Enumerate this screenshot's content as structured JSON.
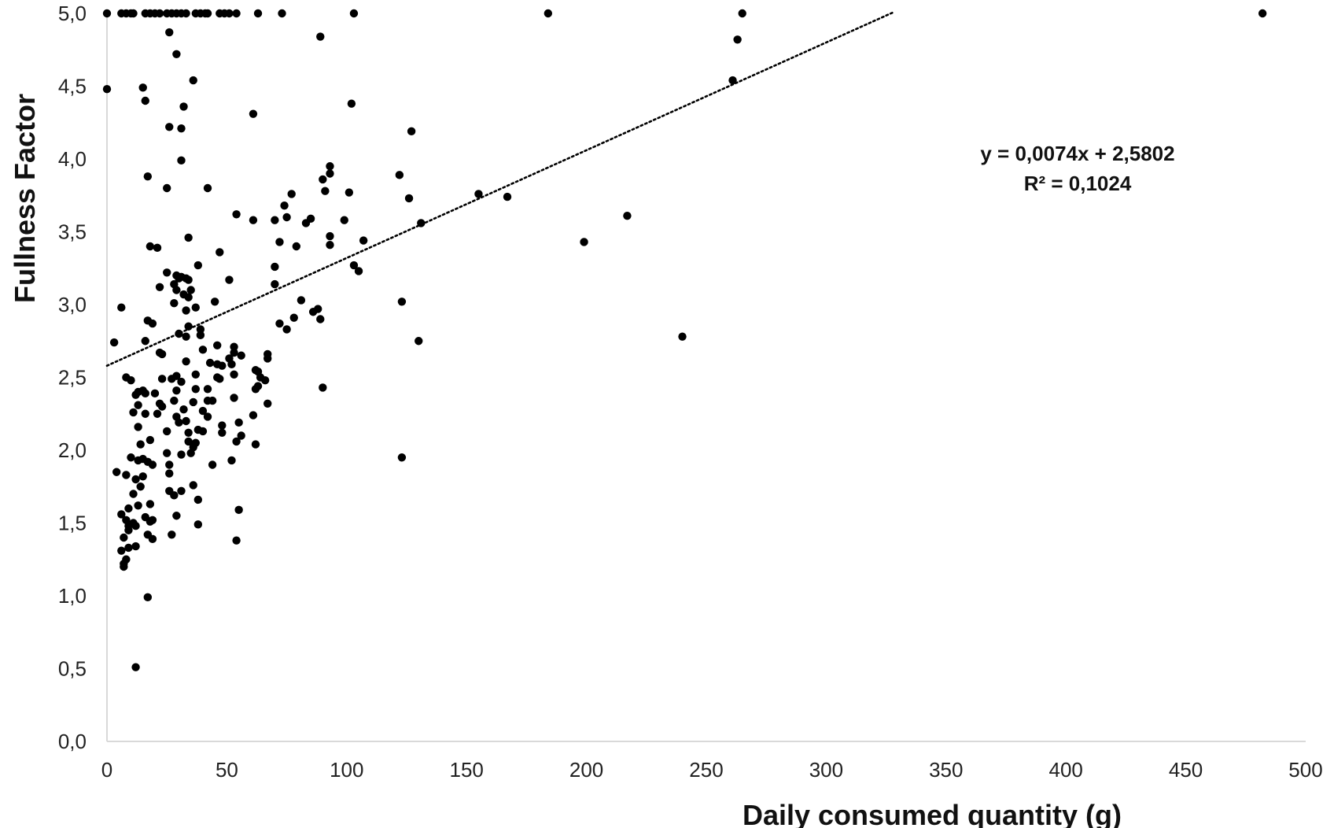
{
  "chart_data": {
    "type": "scatter",
    "title": "",
    "xlabel": "Daily consumed quantity (g)",
    "ylabel": "Fullness Factor",
    "xlim": [
      0,
      500
    ],
    "ylim": [
      0,
      5
    ],
    "x_ticks": [
      "0",
      "50",
      "100",
      "150",
      "200",
      "250",
      "300",
      "350",
      "400",
      "450",
      "500"
    ],
    "y_ticks": [
      "0,0",
      "0,5",
      "1,0",
      "1,5",
      "2,0",
      "2,5",
      "3,0",
      "3,5",
      "4,0",
      "4,5",
      "5,0"
    ],
    "grid": false,
    "legend": "none",
    "colors": {
      "points": "#000000",
      "axis": "#d9d9d9",
      "trendline": "#000000"
    },
    "trendline": {
      "style": "dotted",
      "slope": 0.0074,
      "intercept": 2.5802,
      "x_range": [
        0,
        328
      ],
      "equation": "y = 0,0074x + 2,5802",
      "r_squared": "R² = 0,1024"
    },
    "series": [
      {
        "points": [
          [
            0,
            5
          ],
          [
            6,
            5
          ],
          [
            8,
            5
          ],
          [
            10,
            5
          ],
          [
            11,
            5
          ],
          [
            16,
            5
          ],
          [
            18,
            5
          ],
          [
            20,
            5
          ],
          [
            22,
            5
          ],
          [
            25,
            5
          ],
          [
            27,
            5
          ],
          [
            29,
            5
          ],
          [
            31,
            5
          ],
          [
            33,
            5
          ],
          [
            37,
            5
          ],
          [
            39,
            5
          ],
          [
            41,
            5
          ],
          [
            42,
            5
          ],
          [
            47,
            5
          ],
          [
            49,
            5
          ],
          [
            51,
            5
          ],
          [
            54,
            5
          ],
          [
            63,
            5
          ],
          [
            73,
            5
          ],
          [
            103,
            5
          ],
          [
            184,
            5
          ],
          [
            265,
            5
          ],
          [
            482,
            5
          ],
          [
            26,
            4.87
          ],
          [
            89,
            4.84
          ],
          [
            263,
            4.82
          ],
          [
            29,
            4.72
          ],
          [
            0,
            4.48
          ],
          [
            15,
            4.49
          ],
          [
            36,
            4.54
          ],
          [
            261,
            4.54
          ],
          [
            16,
            4.4
          ],
          [
            32,
            4.36
          ],
          [
            102,
            4.38
          ],
          [
            61,
            4.31
          ],
          [
            26,
            4.22
          ],
          [
            31,
            4.21
          ],
          [
            127,
            4.19
          ],
          [
            31,
            3.99
          ],
          [
            93,
            3.95
          ],
          [
            17,
            3.88
          ],
          [
            93,
            3.9
          ],
          [
            122,
            3.89
          ],
          [
            90,
            3.86
          ],
          [
            25,
            3.8
          ],
          [
            42,
            3.8
          ],
          [
            91,
            3.78
          ],
          [
            101,
            3.77
          ],
          [
            77,
            3.76
          ],
          [
            126,
            3.73
          ],
          [
            155,
            3.76
          ],
          [
            167,
            3.74
          ],
          [
            74,
            3.68
          ],
          [
            54,
            3.62
          ],
          [
            70,
            3.58
          ],
          [
            75,
            3.6
          ],
          [
            61,
            3.58
          ],
          [
            85,
            3.59
          ],
          [
            83,
            3.56
          ],
          [
            99,
            3.58
          ],
          [
            217,
            3.61
          ],
          [
            131,
            3.56
          ],
          [
            93,
            3.47
          ],
          [
            34,
            3.46
          ],
          [
            107,
            3.44
          ],
          [
            72,
            3.43
          ],
          [
            199,
            3.43
          ],
          [
            18,
            3.4
          ],
          [
            21,
            3.39
          ],
          [
            79,
            3.4
          ],
          [
            93,
            3.41
          ],
          [
            47,
            3.36
          ],
          [
            38,
            3.27
          ],
          [
            70,
            3.26
          ],
          [
            103,
            3.27
          ],
          [
            105,
            3.23
          ],
          [
            25,
            3.22
          ],
          [
            29,
            3.2
          ],
          [
            30,
            3.18
          ],
          [
            31,
            3.19
          ],
          [
            33,
            3.18
          ],
          [
            34,
            3.17
          ],
          [
            28,
            3.14
          ],
          [
            51,
            3.17
          ],
          [
            70,
            3.14
          ],
          [
            29,
            3.1
          ],
          [
            35,
            3.1
          ],
          [
            22,
            3.12
          ],
          [
            32,
            3.07
          ],
          [
            34,
            3.05
          ],
          [
            45,
            3.02
          ],
          [
            28,
            3.01
          ],
          [
            123,
            3.02
          ],
          [
            81,
            3.03
          ],
          [
            37,
            2.98
          ],
          [
            6,
            2.98
          ],
          [
            33,
            2.96
          ],
          [
            88,
            2.97
          ],
          [
            86,
            2.95
          ],
          [
            78,
            2.91
          ],
          [
            89,
            2.9
          ],
          [
            17,
            2.89
          ],
          [
            19,
            2.87
          ],
          [
            72,
            2.87
          ],
          [
            34,
            2.85
          ],
          [
            75,
            2.83
          ],
          [
            39,
            2.83
          ],
          [
            30,
            2.8
          ],
          [
            39,
            2.79
          ],
          [
            33,
            2.78
          ],
          [
            240,
            2.78
          ],
          [
            130,
            2.75
          ],
          [
            16,
            2.75
          ],
          [
            3,
            2.74
          ],
          [
            46,
            2.72
          ],
          [
            53,
            2.71
          ],
          [
            40,
            2.69
          ],
          [
            22,
            2.67
          ],
          [
            23,
            2.66
          ],
          [
            53,
            2.67
          ],
          [
            67,
            2.66
          ],
          [
            56,
            2.65
          ],
          [
            67,
            2.63
          ],
          [
            51,
            2.63
          ],
          [
            33,
            2.61
          ],
          [
            43,
            2.6
          ],
          [
            46,
            2.59
          ],
          [
            48,
            2.58
          ],
          [
            52,
            2.59
          ],
          [
            62,
            2.55
          ],
          [
            63,
            2.54
          ],
          [
            64,
            2.5
          ],
          [
            66,
            2.48
          ],
          [
            63,
            2.44
          ],
          [
            62,
            2.42
          ],
          [
            53,
            2.52
          ],
          [
            46,
            2.5
          ],
          [
            29,
            2.51
          ],
          [
            37,
            2.52
          ],
          [
            47,
            2.49
          ],
          [
            27,
            2.49
          ],
          [
            23,
            2.49
          ],
          [
            31,
            2.47
          ],
          [
            8,
            2.5
          ],
          [
            10,
            2.48
          ],
          [
            29,
            2.41
          ],
          [
            37,
            2.42
          ],
          [
            42,
            2.42
          ],
          [
            90,
            2.43
          ],
          [
            13,
            2.4
          ],
          [
            15,
            2.41
          ],
          [
            16,
            2.39
          ],
          [
            20,
            2.39
          ],
          [
            12,
            2.38
          ],
          [
            42,
            2.34
          ],
          [
            44,
            2.34
          ],
          [
            53,
            2.36
          ],
          [
            22,
            2.32
          ],
          [
            28,
            2.34
          ],
          [
            36,
            2.33
          ],
          [
            13,
            2.31
          ],
          [
            23,
            2.3
          ],
          [
            32,
            2.28
          ],
          [
            40,
            2.27
          ],
          [
            67,
            2.32
          ],
          [
            11,
            2.26
          ],
          [
            16,
            2.25
          ],
          [
            21,
            2.25
          ],
          [
            29,
            2.23
          ],
          [
            42,
            2.23
          ],
          [
            61,
            2.24
          ],
          [
            55,
            2.19
          ],
          [
            30,
            2.19
          ],
          [
            33,
            2.2
          ],
          [
            48,
            2.17
          ],
          [
            13,
            2.16
          ],
          [
            25,
            2.13
          ],
          [
            34,
            2.12
          ],
          [
            38,
            2.14
          ],
          [
            40,
            2.13
          ],
          [
            48,
            2.12
          ],
          [
            56,
            2.1
          ],
          [
            18,
            2.07
          ],
          [
            34,
            2.06
          ],
          [
            37,
            2.05
          ],
          [
            54,
            2.06
          ],
          [
            14,
            2.04
          ],
          [
            36,
            2.02
          ],
          [
            62,
            2.04
          ],
          [
            25,
            1.98
          ],
          [
            31,
            1.97
          ],
          [
            35,
            1.98
          ],
          [
            15,
            1.94
          ],
          [
            10,
            1.95
          ],
          [
            13,
            1.93
          ],
          [
            19,
            1.9
          ],
          [
            26,
            1.9
          ],
          [
            17,
            1.92
          ],
          [
            44,
            1.9
          ],
          [
            52,
            1.93
          ],
          [
            123,
            1.95
          ],
          [
            4,
            1.85
          ],
          [
            8,
            1.83
          ],
          [
            12,
            1.8
          ],
          [
            15,
            1.82
          ],
          [
            26,
            1.84
          ],
          [
            36,
            1.76
          ],
          [
            26,
            1.72
          ],
          [
            31,
            1.72
          ],
          [
            28,
            1.69
          ],
          [
            11,
            1.7
          ],
          [
            14,
            1.75
          ],
          [
            38,
            1.66
          ],
          [
            9,
            1.6
          ],
          [
            13,
            1.62
          ],
          [
            18,
            1.63
          ],
          [
            55,
            1.59
          ],
          [
            6,
            1.56
          ],
          [
            8,
            1.52
          ],
          [
            9,
            1.48
          ],
          [
            11,
            1.5
          ],
          [
            16,
            1.54
          ],
          [
            18,
            1.51
          ],
          [
            29,
            1.55
          ],
          [
            19,
            1.52
          ],
          [
            38,
            1.49
          ],
          [
            7,
            1.4
          ],
          [
            9,
            1.45
          ],
          [
            12,
            1.48
          ],
          [
            17,
            1.42
          ],
          [
            19,
            1.39
          ],
          [
            27,
            1.42
          ],
          [
            54,
            1.38
          ],
          [
            6,
            1.31
          ],
          [
            9,
            1.33
          ],
          [
            12,
            1.34
          ],
          [
            8,
            1.25
          ],
          [
            7,
            1.22
          ],
          [
            7,
            1.2
          ],
          [
            17,
            0.99
          ],
          [
            12,
            0.51
          ]
        ]
      }
    ]
  }
}
